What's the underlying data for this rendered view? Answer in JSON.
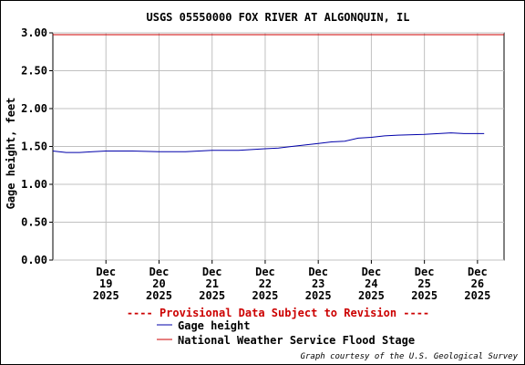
{
  "chart_data": {
    "type": "line",
    "title": "USGS 05550000 FOX RIVER AT ALGONQUIN, IL",
    "ylabel": "Gage height, feet",
    "ylim": [
      0,
      3.0
    ],
    "yticks": [
      "0.00",
      "0.50",
      "1.00",
      "1.50",
      "2.00",
      "2.50",
      "3.00"
    ],
    "xlim": [
      "2025-12-18 00:00",
      "2025-12-26 12:00"
    ],
    "xticks": [
      {
        "at": "2025-12-19 00:00",
        "month": "Dec",
        "day": "19",
        "year": "2025"
      },
      {
        "at": "2025-12-20 00:00",
        "month": "Dec",
        "day": "20",
        "year": "2025"
      },
      {
        "at": "2025-12-21 00:00",
        "month": "Dec",
        "day": "21",
        "year": "2025"
      },
      {
        "at": "2025-12-22 00:00",
        "month": "Dec",
        "day": "22",
        "year": "2025"
      },
      {
        "at": "2025-12-23 00:00",
        "month": "Dec",
        "day": "23",
        "year": "2025"
      },
      {
        "at": "2025-12-24 00:00",
        "month": "Dec",
        "day": "24",
        "year": "2025"
      },
      {
        "at": "2025-12-25 00:00",
        "month": "Dec",
        "day": "25",
        "year": "2025"
      },
      {
        "at": "2025-12-26 00:00",
        "month": "Dec",
        "day": "26",
        "year": "2025"
      }
    ],
    "grid": true,
    "series": [
      {
        "name": "Gage height",
        "color": "#0000aa",
        "points": [
          [
            "2025-12-18 00:00",
            1.44
          ],
          [
            "2025-12-18 06:00",
            1.42
          ],
          [
            "2025-12-18 12:00",
            1.42
          ],
          [
            "2025-12-18 18:00",
            1.43
          ],
          [
            "2025-12-19 00:00",
            1.44
          ],
          [
            "2025-12-19 12:00",
            1.44
          ],
          [
            "2025-12-20 00:00",
            1.43
          ],
          [
            "2025-12-20 12:00",
            1.43
          ],
          [
            "2025-12-21 00:00",
            1.45
          ],
          [
            "2025-12-21 12:00",
            1.45
          ],
          [
            "2025-12-22 00:00",
            1.47
          ],
          [
            "2025-12-22 06:00",
            1.48
          ],
          [
            "2025-12-22 12:00",
            1.5
          ],
          [
            "2025-12-23 00:00",
            1.54
          ],
          [
            "2025-12-23 06:00",
            1.56
          ],
          [
            "2025-12-23 12:00",
            1.57
          ],
          [
            "2025-12-23 18:00",
            1.61
          ],
          [
            "2025-12-24 00:00",
            1.62
          ],
          [
            "2025-12-24 06:00",
            1.64
          ],
          [
            "2025-12-24 12:00",
            1.65
          ],
          [
            "2025-12-25 00:00",
            1.66
          ],
          [
            "2025-12-25 12:00",
            1.68
          ],
          [
            "2025-12-25 18:00",
            1.67
          ],
          [
            "2025-12-26 00:00",
            1.67
          ],
          [
            "2025-12-26 03:00",
            1.67
          ]
        ]
      }
    ],
    "flood_stage": {
      "name": "National Weather Service Flood Stage",
      "value": 3.0,
      "color": "#cc0000"
    },
    "legend": {
      "placement": "bottom",
      "header": "---- Provisional Data Subject to Revision ----",
      "header_color": "#cc0000"
    },
    "credit": "Graph courtesy of the U.S. Geological Survey"
  }
}
